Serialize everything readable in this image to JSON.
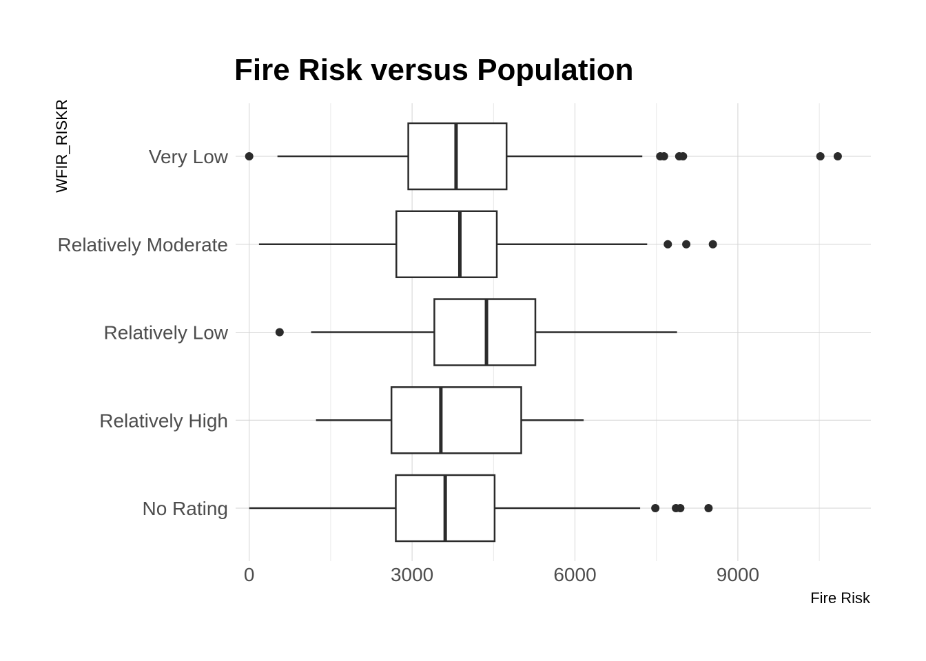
{
  "chart_data": {
    "type": "boxplot",
    "orientation": "horizontal",
    "title": "Fire Risk versus Population",
    "xlabel": "Fire Risk",
    "ylabel": "WFIR_RISKR",
    "xlim": [
      -250,
      11450
    ],
    "x_ticks": [
      0,
      3000,
      6000,
      9000
    ],
    "x_tick_labels": [
      "0",
      "3000",
      "6000",
      "9000"
    ],
    "grid": true,
    "categories": [
      "Very Low",
      "Relatively Moderate",
      "Relatively Low",
      "Relatively High",
      "No Rating"
    ],
    "boxes": [
      {
        "category": "Very Low",
        "whisker_low": 520,
        "q1": 2930,
        "median": 3810,
        "q3": 4740,
        "whisker_high": 7240,
        "outliers": [
          0,
          7570,
          7640,
          7920,
          7990,
          10520,
          10840
        ]
      },
      {
        "category": "Relatively Moderate",
        "whisker_low": 180,
        "q1": 2710,
        "median": 3880,
        "q3": 4560,
        "whisker_high": 7330,
        "outliers": [
          7710,
          8050,
          8540
        ]
      },
      {
        "category": "Relatively Low",
        "whisker_low": 1140,
        "q1": 3410,
        "median": 4370,
        "q3": 5270,
        "whisker_high": 7880,
        "outliers": [
          560
        ]
      },
      {
        "category": "Relatively High",
        "whisker_low": 1230,
        "q1": 2620,
        "median": 3530,
        "q3": 5010,
        "whisker_high": 6160,
        "outliers": []
      },
      {
        "category": "No Rating",
        "whisker_low": 0,
        "q1": 2700,
        "median": 3610,
        "q3": 4520,
        "whisker_high": 7200,
        "outliers": [
          7480,
          7860,
          7940,
          8460
        ]
      }
    ],
    "colors": {
      "box_stroke": "#2b2b2b",
      "grid_major": "#d3d3d3",
      "grid_minor": "#e8e8e8",
      "outlier_fill": "#2b2b2b"
    }
  }
}
